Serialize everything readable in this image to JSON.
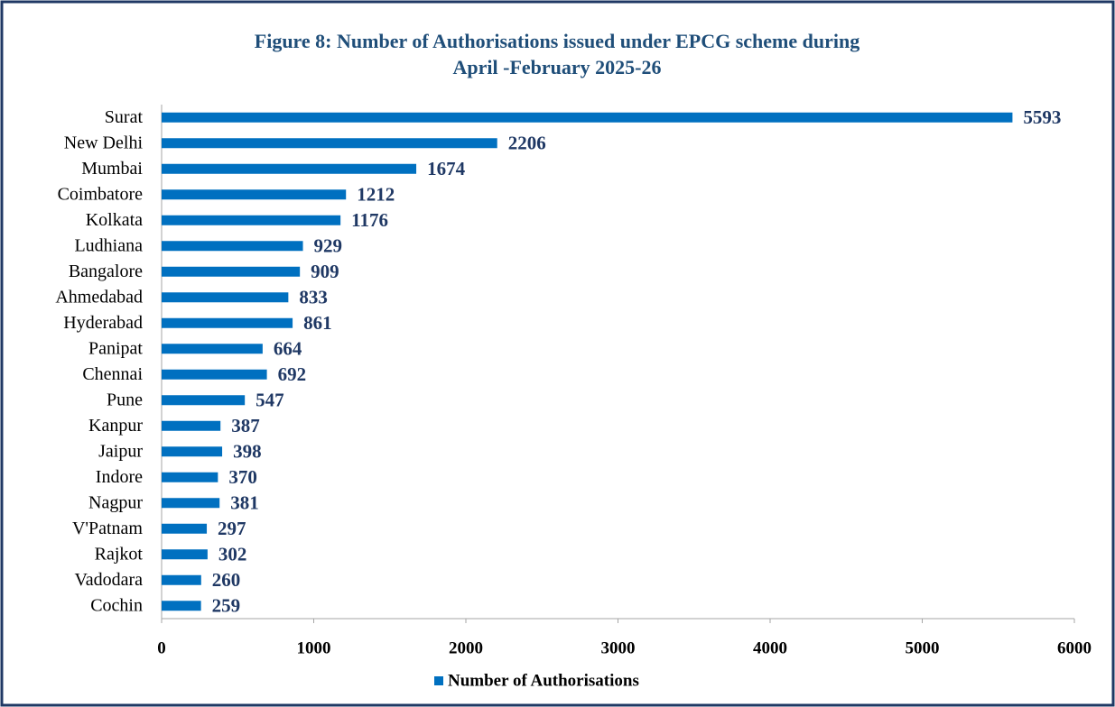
{
  "chart_data": {
    "type": "bar",
    "orientation": "horizontal",
    "title": [
      "Figure 8: Number of Authorisations issued under EPCG scheme during",
      "April -February 2025-26"
    ],
    "categories": [
      "Surat",
      "New Delhi",
      "Mumbai",
      "Coimbatore",
      "Kolkata",
      "Ludhiana",
      "Bangalore",
      "Ahmedabad",
      "Hyderabad",
      "Panipat",
      "Chennai",
      "Pune",
      "Kanpur",
      "Jaipur",
      "Indore",
      "Nagpur",
      "V'Patnam",
      "Rajkot",
      "Vadodara",
      "Cochin"
    ],
    "series": [
      {
        "name": "Number of Authorisations",
        "color": "#0070c0",
        "values": [
          5593,
          2206,
          1674,
          1212,
          1176,
          929,
          909,
          833,
          861,
          664,
          692,
          547,
          387,
          398,
          370,
          381,
          297,
          302,
          260,
          259
        ]
      }
    ],
    "xlim": [
      0,
      6000
    ],
    "xticks": [
      0,
      1000,
      2000,
      3000,
      4000,
      5000,
      6000
    ],
    "grid": false,
    "legend": "bottom"
  }
}
